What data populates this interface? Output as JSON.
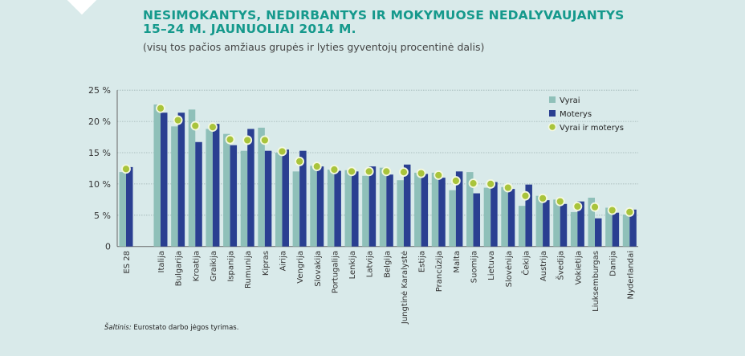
{
  "title_line1": "NESIMOKANTYS, NEDIRBANTYS IR MOKYMUOSE NEDALYVAUJANTYS",
  "title_line2": "15–24 M. JAUNUOLIAI 2014 M.",
  "subtitle": "(visų tos pačios amžiaus grupės ir lyties gyventojų procentinė dalis)",
  "source_label": "Šaltinis:",
  "source_text": "Eurostato darbo jėgos tyrimas.",
  "colors": {
    "vyrai": "#8fc0b9",
    "moterys": "#2a3f91",
    "bendras": "#a9c43b",
    "title": "#15998c",
    "background": "#d9eaea"
  },
  "chart_data": {
    "type": "bar",
    "ylim": [
      0,
      25
    ],
    "yticks": [
      "0",
      "5 %",
      "10 %",
      "15 %",
      "20 %",
      "25 %"
    ],
    "grid": true,
    "legend_position": "top-right",
    "categories": [
      "ES 28",
      "Italija",
      "Bulgarija",
      "Kroatija",
      "Graikija",
      "Ispanija",
      "Rumunija",
      "Kipras",
      "Airija",
      "Vengrija",
      "Slovakija",
      "Portugalija",
      "Lenkija",
      "Latvija",
      "Belgija",
      "Jungtinė Karalystė",
      "Estija",
      "Prancūzija",
      "Malta",
      "Suomija",
      "Lietuva",
      "Slovėnija",
      "Čekija",
      "Austrija",
      "Švedija",
      "Vokietija",
      "Liuksemburgas",
      "Danija",
      "Nyderlandai"
    ],
    "series": [
      {
        "name": "Vyrai",
        "kind": "bar",
        "values": [
          11.9,
          22.7,
          19.2,
          21.9,
          18.8,
          18.0,
          15.3,
          19.0,
          15.0,
          12.0,
          12.9,
          12.3,
          12.2,
          11.3,
          12.6,
          10.6,
          11.8,
          11.8,
          9.0,
          11.9,
          9.4,
          9.5,
          6.5,
          8.1,
          7.5,
          5.5,
          7.8,
          6.2,
          5.1
        ]
      },
      {
        "name": "Moterys",
        "kind": "bar",
        "values": [
          12.7,
          21.4,
          21.4,
          16.7,
          19.6,
          16.2,
          18.8,
          15.3,
          15.5,
          15.3,
          12.8,
          12.1,
          12.0,
          12.8,
          11.5,
          13.1,
          11.6,
          11.0,
          12.0,
          8.5,
          10.3,
          9.2,
          9.9,
          7.4,
          6.8,
          7.2,
          4.5,
          5.4,
          5.9
        ]
      },
      {
        "name": "Vyrai ir moterys",
        "kind": "point",
        "values": [
          12.4,
          22.1,
          20.2,
          19.3,
          19.1,
          17.1,
          17.0,
          17.0,
          15.2,
          13.6,
          12.8,
          12.3,
          12.0,
          12.0,
          12.0,
          11.9,
          11.7,
          11.4,
          10.5,
          10.1,
          10.0,
          9.4,
          8.1,
          7.7,
          7.2,
          6.4,
          6.3,
          5.8,
          5.5
        ]
      }
    ]
  }
}
